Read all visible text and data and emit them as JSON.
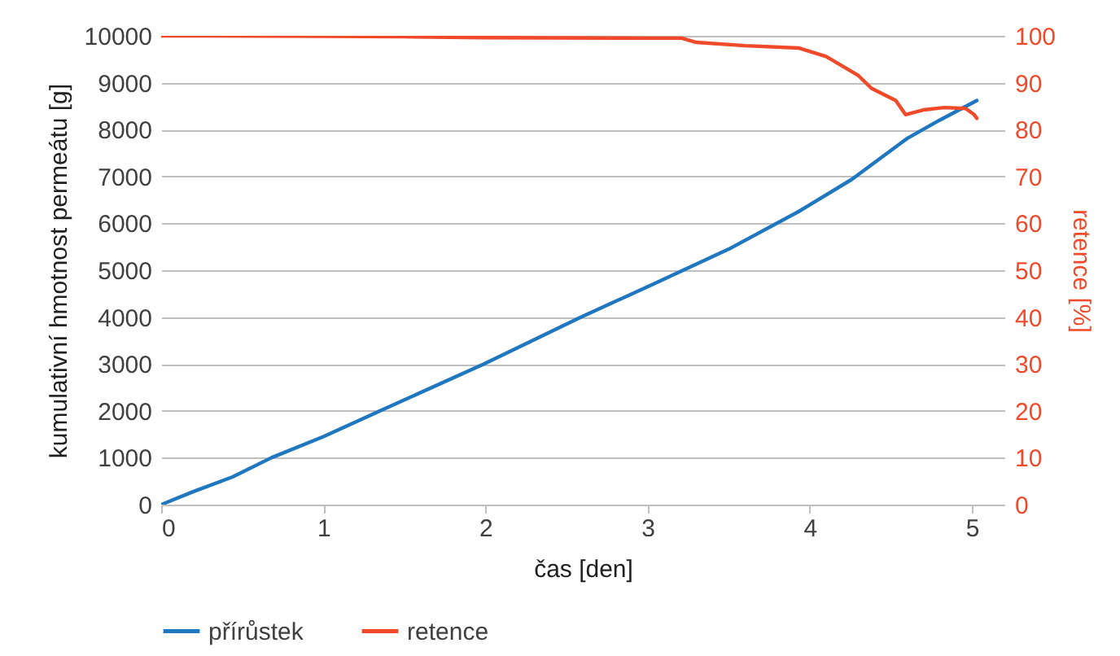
{
  "chart_data": {
    "type": "line",
    "xlabel": "čas [den]",
    "ylabel": "kumulativní hmotnost permeátu [g]",
    "y2label": "retence  [%]",
    "xlim": [
      0,
      5.2
    ],
    "xticks": [
      0,
      1,
      2,
      3,
      4,
      5
    ],
    "ylim": [
      0,
      10000
    ],
    "yticks": [
      0,
      1000,
      2000,
      3000,
      4000,
      5000,
      6000,
      7000,
      8000,
      9000,
      10000
    ],
    "y2lim": [
      0,
      100
    ],
    "y2ticks": [
      0,
      10,
      20,
      30,
      40,
      50,
      60,
      70,
      80,
      90,
      100
    ],
    "grid": "y",
    "legend": "bottom",
    "marker": "none",
    "series": [
      {
        "name": "přírůstek",
        "color": "#1f77c0",
        "x": [
          0,
          0.2,
          0.44,
          0.68,
          1,
          1.35,
          1.99,
          2.59,
          3,
          3.5,
          3.93,
          4.26,
          4.56,
          4.6,
          4.8,
          5.03
        ],
        "values": [
          0,
          280,
          590,
          1000,
          1450,
          2000,
          3000,
          4000,
          4650,
          5450,
          6250,
          6940,
          7710,
          7810,
          8200,
          8620
        ]
      },
      {
        "name": "retence",
        "color": "#f04a2a",
        "axis": "y2",
        "x": [
          0,
          1,
          1.5,
          2,
          3,
          3.21,
          3.3,
          3.6,
          3.93,
          4.1,
          4.3,
          4.38,
          4.53,
          4.59,
          4.7,
          4.83,
          4.96,
          5.01,
          5.03
        ],
        "values": [
          100,
          99.9,
          99.8,
          99.6,
          99.5,
          99.5,
          98.6,
          97.9,
          97.4,
          95.6,
          91.5,
          88.8,
          86.2,
          83.2,
          84.2,
          84.7,
          84.5,
          83.3,
          82.4
        ]
      }
    ]
  }
}
